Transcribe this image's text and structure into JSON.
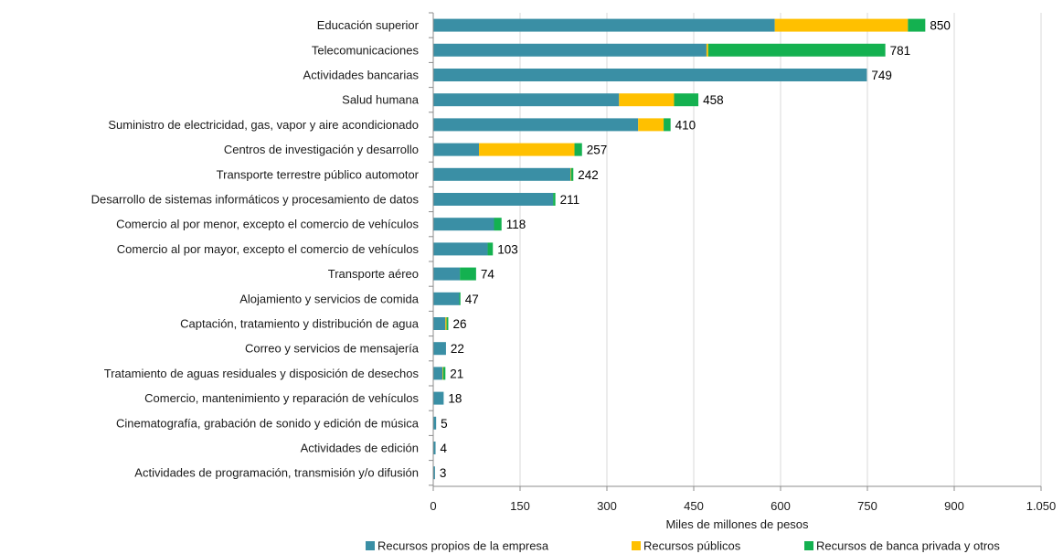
{
  "chart_data": {
    "type": "bar",
    "orientation": "horizontal",
    "stacked": true,
    "xlabel": "Miles de millones de pesos",
    "xlim": [
      0,
      1050
    ],
    "xticks": [
      0,
      150,
      300,
      450,
      600,
      750,
      900,
      1050
    ],
    "xtick_labels": [
      "0",
      "150",
      "300",
      "450",
      "600",
      "750",
      "900",
      "1.050"
    ],
    "grid": true,
    "legend_position": "bottom",
    "categories": [
      "Educación superior",
      "Telecomunicaciones",
      "Actividades bancarias",
      "Salud humana",
      "Suministro de electricidad, gas, vapor y aire acondicionado",
      "Centros de investigación y desarrollo",
      "Transporte terrestre público automotor",
      "Desarrollo de sistemas informáticos y procesamiento de datos",
      "Comercio al por menor, excepto el comercio de vehículos",
      "Comercio al por mayor, excepto el comercio de vehículos",
      "Transporte aéreo",
      "Alojamiento y servicios de comida",
      "Captación, tratamiento y distribución de agua",
      "Correo y servicios de mensajería",
      "Tratamiento de aguas residuales y disposición de desechos",
      "Comercio, mantenimiento y reparación de vehículos",
      "Cinematografía, grabación de sonido y edición de música",
      "Actividades de edición",
      "Actividades de programación, transmisión y/o difusión"
    ],
    "series": [
      {
        "name": "Recursos propios de la empresa",
        "color": "#3a8fa5",
        "values": [
          590,
          472,
          749,
          321,
          354,
          79,
          237,
          207,
          105,
          94,
          46,
          45,
          21,
          22,
          16,
          18,
          5,
          4,
          3
        ]
      },
      {
        "name": "Recursos públicos",
        "color": "#ffc000",
        "values": [
          230,
          3,
          0,
          95,
          44,
          165,
          1,
          0,
          0,
          0,
          0,
          0,
          2,
          0,
          1,
          0,
          0,
          0,
          0
        ]
      },
      {
        "name": "Recursos de banca privada y otros",
        "color": "#14b150",
        "values": [
          30,
          306,
          0,
          42,
          12,
          13,
          4,
          4,
          13,
          9,
          28,
          2,
          3,
          0,
          4,
          0,
          0,
          0,
          0
        ]
      }
    ],
    "totals": [
      850,
      781,
      749,
      458,
      410,
      257,
      242,
      211,
      118,
      103,
      74,
      47,
      26,
      22,
      21,
      18,
      5,
      4,
      3
    ]
  }
}
